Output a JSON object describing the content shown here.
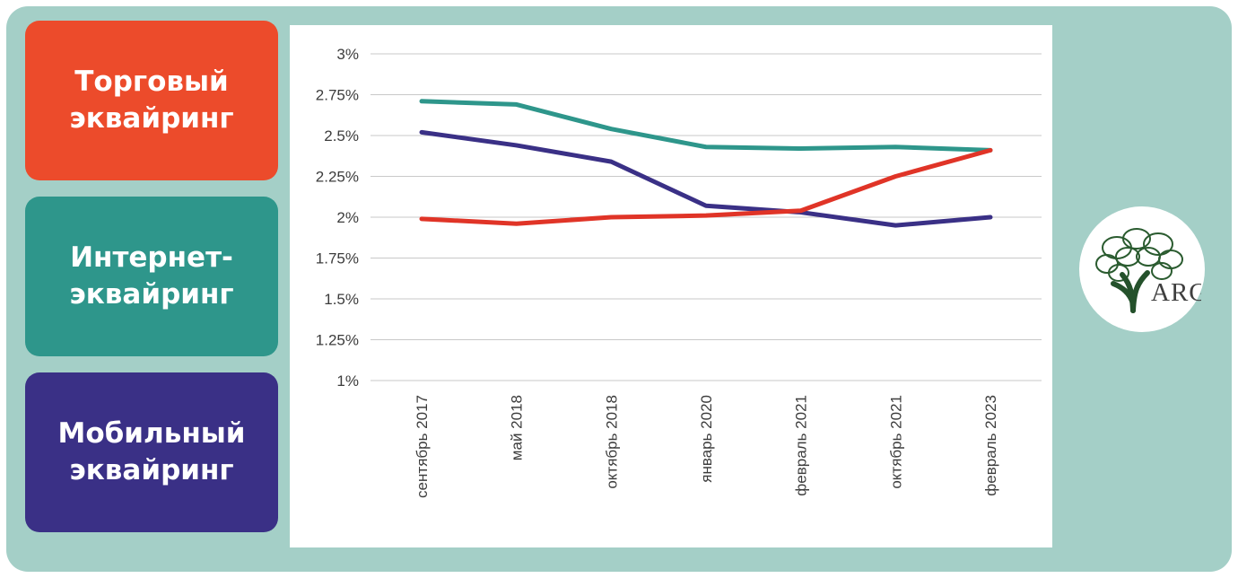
{
  "page": {
    "background_color": "#a4cfc7",
    "panel_color": "#ffffff"
  },
  "legend": {
    "items": [
      {
        "label": "Торговый эквайринг",
        "color": "#ec4b2b"
      },
      {
        "label": "Интернет-эквайринг",
        "color": "#2e968b"
      },
      {
        "label": "Мобильный эквайринг",
        "color": "#3a3086"
      }
    ]
  },
  "logo": {
    "text": "ARG"
  },
  "chart_data": {
    "type": "line",
    "title": "",
    "xlabel": "",
    "ylabel": "",
    "grid": true,
    "legend_position": "left-cards",
    "ylim": [
      1,
      3
    ],
    "yticks": [
      {
        "value": 3,
        "label": "3%"
      },
      {
        "value": 2.75,
        "label": "2.75%"
      },
      {
        "value": 2.5,
        "label": "2.5%"
      },
      {
        "value": 2.25,
        "label": "2.25%"
      },
      {
        "value": 2,
        "label": "2%"
      },
      {
        "value": 1.75,
        "label": "1.75%"
      },
      {
        "value": 1.5,
        "label": "1.5%"
      },
      {
        "value": 1.25,
        "label": "1.25%"
      },
      {
        "value": 1,
        "label": "1%"
      }
    ],
    "categories": [
      "сентябрь 2017",
      "май 2018",
      "октябрь 2018",
      "январь 2020",
      "февраль 2021",
      "октябрь 2021",
      "февраль 2023"
    ],
    "series": [
      {
        "name": "Интернет-эквайринг",
        "color": "#2e968b",
        "values": [
          2.71,
          2.69,
          2.54,
          2.43,
          2.42,
          2.43,
          2.41
        ]
      },
      {
        "name": "Мобильный эквайринг",
        "color": "#3a3086",
        "values": [
          2.52,
          2.44,
          2.34,
          2.07,
          2.03,
          1.95,
          2.0
        ]
      },
      {
        "name": "Торговый эквайринг",
        "color": "#e03427",
        "values": [
          1.99,
          1.96,
          2.0,
          2.01,
          2.04,
          2.25,
          2.41
        ]
      }
    ]
  }
}
